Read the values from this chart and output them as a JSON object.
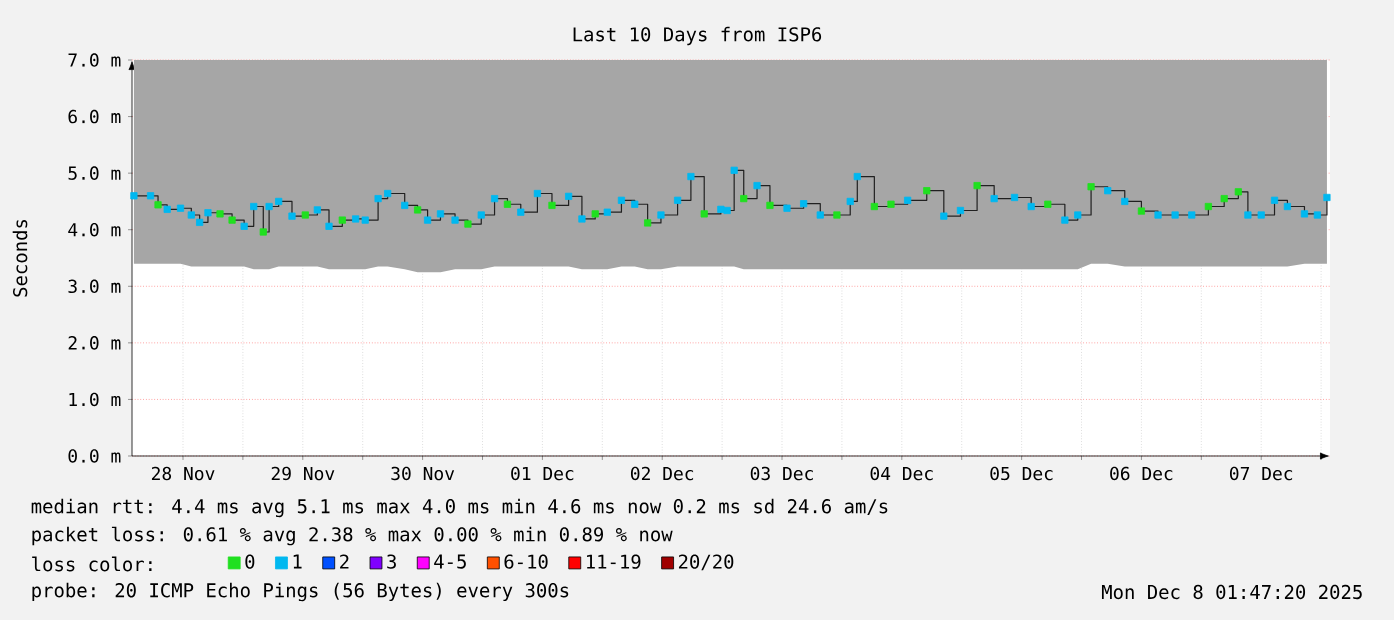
{
  "chart_data": {
    "type": "step",
    "title": "Last 10 Days from ISP6",
    "ylabel": "Seconds",
    "xlim": [
      "2025-11-28T01:47",
      "2025-12-08T01:47"
    ],
    "xticks": [
      {
        "value": "2025-11-28T12:00",
        "label": "28 Nov"
      },
      {
        "value": "2025-11-29",
        "label": null
      },
      {
        "value": "2025-11-29T12:00",
        "label": "29 Nov"
      },
      {
        "value": "2025-11-30",
        "label": null
      },
      {
        "value": "2025-11-30T12:00",
        "label": "30 Nov"
      },
      {
        "value": "2025-12-01",
        "label": null
      },
      {
        "value": "2025-12-01T12:00",
        "label": "01 Dec"
      },
      {
        "value": "2025-12-02",
        "label": null
      },
      {
        "value": "2025-12-02T12:00",
        "label": "02 Dec"
      },
      {
        "value": "2025-12-03",
        "label": null
      },
      {
        "value": "2025-12-03T12:00",
        "label": "03 Dec"
      },
      {
        "value": "2025-12-04",
        "label": null
      },
      {
        "value": "2025-12-04T12:00",
        "label": "04 Dec"
      },
      {
        "value": "2025-12-05",
        "label": null
      },
      {
        "value": "2025-12-05T12:00",
        "label": "05 Dec"
      },
      {
        "value": "2025-12-06",
        "label": null
      },
      {
        "value": "2025-12-06T12:00",
        "label": "06 Dec"
      },
      {
        "value": "2025-12-07",
        "label": null
      },
      {
        "value": "2025-12-07T12:00",
        "label": "07 Dec"
      },
      {
        "value": "2025-12-08",
        "label": null
      }
    ],
    "ylim": [
      0,
      7
    ],
    "yticks": [
      {
        "value": 0,
        "label": "0.0 m"
      },
      {
        "value": 1,
        "label": "1.0 m"
      },
      {
        "value": 2,
        "label": "2.0 m"
      },
      {
        "value": 3,
        "label": "3.0 m"
      },
      {
        "value": 4,
        "label": "4.0 m"
      },
      {
        "value": 5,
        "label": "5.0 m"
      },
      {
        "value": 6,
        "label": "6.0 m"
      },
      {
        "value": 7,
        "label": "7.0 m"
      }
    ],
    "grid": true,
    "marker": "square",
    "legend": "bottom",
    "legend_title": "loss color:",
    "x": [
      "2025-11-28T02:10",
      "2025-11-28T05:30",
      "2025-11-28T07:00",
      "2025-11-28T08:50",
      "2025-11-28T11:30",
      "2025-11-28T13:40",
      "2025-11-28T15:20",
      "2025-11-28T17:00",
      "2025-11-28T19:25",
      "2025-11-28T21:50",
      "2025-11-29T00:15",
      "2025-11-29T02:10",
      "2025-11-29T04:05",
      "2025-11-29T05:15",
      "2025-11-29T07:10",
      "2025-11-29T09:50",
      "2025-11-29T12:30",
      "2025-11-29T14:55",
      "2025-11-29T17:15",
      "2025-11-29T19:55",
      "2025-11-29T22:35",
      "2025-11-30T00:30",
      "2025-11-30T03:05",
      "2025-11-30T05:00",
      "2025-11-30T08:25",
      "2025-11-30T11:00",
      "2025-11-30T13:00",
      "2025-11-30T15:35",
      "2025-11-30T18:30",
      "2025-11-30T21:05",
      "2025-11-30T23:45",
      "2025-12-01T02:25",
      "2025-12-01T05:00",
      "2025-12-01T07:40",
      "2025-12-01T11:00",
      "2025-12-01T13:55",
      "2025-12-01T17:15",
      "2025-12-01T19:55",
      "2025-12-01T22:35",
      "2025-12-02T01:00",
      "2025-12-02T03:50",
      "2025-12-02T06:30",
      "2025-12-02T09:05",
      "2025-12-02T11:45",
      "2025-12-02T15:05",
      "2025-12-02T17:45",
      "2025-12-02T20:25",
      "2025-12-02T23:45",
      "2025-12-03T01:00",
      "2025-12-03T02:25",
      "2025-12-03T04:20",
      "2025-12-03T07:00",
      "2025-12-03T09:35",
      "2025-12-03T13:00",
      "2025-12-03T16:20",
      "2025-12-03T19:40",
      "2025-12-03T23:00",
      "2025-12-04T01:40",
      "2025-12-04T03:05",
      "2025-12-04T06:30",
      "2025-12-04T09:50",
      "2025-12-04T13:10",
      "2025-12-04T17:00",
      "2025-12-04T20:25",
      "2025-12-04T23:45",
      "2025-12-05T03:05",
      "2025-12-05T06:30",
      "2025-12-05T10:35",
      "2025-12-05T13:55",
      "2025-12-05T17:15",
      "2025-12-05T20:40",
      "2025-12-05T23:15",
      "2025-12-06T01:55",
      "2025-12-06T05:15",
      "2025-12-06T08:40",
      "2025-12-06T12:00",
      "2025-12-06T15:20",
      "2025-12-06T18:45",
      "2025-12-06T22:05",
      "2025-12-07T01:25",
      "2025-12-07T04:35",
      "2025-12-07T07:25",
      "2025-12-07T09:20",
      "2025-12-07T12:00",
      "2025-12-07T14:40",
      "2025-12-07T17:15",
      "2025-12-07T20:40",
      "2025-12-07T23:15",
      "2025-12-08T01:10"
    ],
    "series": [
      {
        "color": "#202020",
        "marker": "none",
        "values": [
          4.6,
          4.6,
          4.44,
          4.36,
          4.38,
          4.26,
          4.13,
          4.3,
          4.28,
          4.17,
          4.06,
          4.41,
          3.96,
          4.41,
          4.5,
          4.24,
          4.26,
          4.35,
          4.06,
          4.17,
          4.19,
          4.17,
          4.55,
          4.64,
          4.43,
          4.35,
          4.17,
          4.28,
          4.17,
          4.1,
          4.26,
          4.55,
          4.45,
          4.31,
          4.64,
          4.43,
          4.59,
          4.19,
          4.28,
          4.31,
          4.52,
          4.45,
          4.12,
          4.26,
          4.52,
          4.94,
          4.28,
          4.36,
          4.34,
          5.05,
          4.55,
          4.78,
          4.43,
          4.38,
          4.46,
          4.26,
          4.26,
          4.5,
          4.94,
          4.41,
          4.45,
          4.52,
          4.69,
          4.24,
          4.34,
          4.78,
          4.55,
          4.57,
          4.41,
          4.45,
          4.17,
          4.26,
          4.76,
          4.69,
          4.5,
          4.33,
          4.26,
          4.26,
          4.26,
          4.41,
          4.55,
          4.67,
          4.26,
          4.26,
          4.52,
          4.41,
          4.28,
          4.26,
          4.57
        ],
        "lower": [
          3.4,
          3.4,
          3.4,
          3.4,
          3.4,
          3.35,
          3.35,
          3.35,
          3.35,
          3.35,
          3.35,
          3.3,
          3.3,
          3.3,
          3.35,
          3.35,
          3.35,
          3.35,
          3.3,
          3.3,
          3.3,
          3.3,
          3.35,
          3.35,
          3.3,
          3.25,
          3.25,
          3.25,
          3.3,
          3.3,
          3.3,
          3.35,
          3.35,
          3.35,
          3.35,
          3.35,
          3.35,
          3.3,
          3.3,
          3.3,
          3.35,
          3.35,
          3.3,
          3.3,
          3.35,
          3.35,
          3.35,
          3.35,
          3.35,
          3.35,
          3.3,
          3.3,
          3.3,
          3.3,
          3.3,
          3.3,
          3.3,
          3.3,
          3.3,
          3.3,
          3.3,
          3.3,
          3.3,
          3.3,
          3.3,
          3.3,
          3.3,
          3.3,
          3.3,
          3.3,
          3.3,
          3.3,
          3.4,
          3.4,
          3.35,
          3.35,
          3.35,
          3.35,
          3.35,
          3.35,
          3.35,
          3.35,
          3.35,
          3.35,
          3.35,
          3.35,
          3.4,
          3.4,
          3.4
        ],
        "upper": [
          7,
          7,
          7,
          7,
          7,
          7,
          7,
          7,
          7,
          7,
          7,
          7,
          7,
          7,
          7,
          7,
          7,
          7,
          7,
          7,
          7,
          7,
          7,
          7,
          7,
          7,
          7,
          7,
          7,
          7,
          7,
          7,
          7,
          7,
          7,
          7,
          7,
          7,
          7,
          7,
          7,
          7,
          7,
          7,
          7,
          7,
          7,
          7,
          7,
          7,
          7,
          7,
          7,
          7,
          7,
          7,
          7,
          7,
          7,
          7,
          7,
          7,
          7,
          7,
          7,
          7,
          7,
          7,
          7,
          7,
          7,
          7,
          7,
          7,
          7,
          7,
          7,
          7,
          7,
          7,
          7,
          7,
          7,
          7,
          7,
          7,
          7,
          7,
          7
        ]
      },
      {
        "type": "scatter",
        "name": "0",
        "color": "#20e020",
        "values": [
          null,
          null,
          4.44,
          null,
          null,
          null,
          null,
          null,
          4.28,
          4.17,
          null,
          null,
          3.96,
          null,
          null,
          null,
          4.26,
          null,
          null,
          4.17,
          null,
          null,
          null,
          null,
          null,
          4.35,
          null,
          null,
          null,
          4.1,
          null,
          null,
          4.45,
          null,
          null,
          4.43,
          null,
          null,
          4.28,
          null,
          null,
          null,
          4.12,
          null,
          null,
          null,
          4.28,
          null,
          null,
          null,
          4.55,
          null,
          4.43,
          null,
          null,
          null,
          4.26,
          null,
          null,
          4.41,
          4.45,
          null,
          4.69,
          null,
          null,
          4.78,
          null,
          null,
          null,
          4.45,
          null,
          null,
          4.76,
          null,
          null,
          4.33,
          null,
          null,
          null,
          4.41,
          4.55,
          4.67,
          null,
          null,
          null,
          null,
          null,
          null,
          null
        ]
      },
      {
        "type": "scatter",
        "name": "1",
        "color": "#00b8f0",
        "values": [
          4.6,
          4.6,
          null,
          4.36,
          4.38,
          4.26,
          4.13,
          4.3,
          null,
          null,
          4.06,
          4.41,
          null,
          4.41,
          4.5,
          4.24,
          null,
          4.35,
          4.06,
          null,
          4.19,
          4.17,
          4.55,
          4.64,
          4.43,
          null,
          4.17,
          4.28,
          4.17,
          null,
          4.26,
          4.55,
          null,
          4.31,
          4.64,
          null,
          4.59,
          4.19,
          null,
          4.31,
          4.52,
          4.45,
          null,
          4.26,
          4.52,
          4.94,
          null,
          4.36,
          4.34,
          5.05,
          null,
          4.78,
          null,
          4.38,
          4.46,
          4.26,
          null,
          4.5,
          4.94,
          null,
          null,
          4.52,
          null,
          4.24,
          4.34,
          null,
          4.55,
          4.57,
          4.41,
          null,
          4.17,
          4.26,
          null,
          4.69,
          4.5,
          null,
          4.26,
          4.26,
          4.26,
          null,
          null,
          null,
          4.26,
          4.26,
          4.52,
          4.41,
          4.28,
          4.26,
          4.57
        ]
      },
      {
        "type": "scatter",
        "name": "2",
        "color": "#0050ff",
        "values": [
          null,
          null,
          null,
          null,
          null,
          null,
          null,
          null,
          null,
          null,
          null,
          null,
          null,
          null,
          null,
          null,
          null,
          null,
          null,
          null,
          null,
          null,
          null,
          null,
          null,
          null,
          null,
          null,
          null,
          null,
          null,
          null,
          null,
          null,
          null,
          null,
          null,
          null,
          null,
          null,
          null,
          null,
          null,
          null,
          null,
          null,
          null,
          null,
          null,
          null,
          null,
          null,
          null,
          null,
          null,
          null,
          null,
          null,
          null,
          null,
          null,
          null,
          null,
          null,
          null,
          null,
          null,
          null,
          null,
          null,
          null,
          null,
          null,
          null,
          null,
          null,
          null,
          null,
          null,
          null,
          null,
          null,
          null,
          null,
          null,
          null,
          null,
          null,
          null
        ]
      },
      {
        "type": "scatter",
        "name": "3",
        "color": "#8000ff",
        "values": [
          null,
          null,
          null,
          null,
          null,
          null,
          null,
          null,
          null,
          null,
          null,
          null,
          null,
          null,
          null,
          null,
          null,
          null,
          null,
          null,
          null,
          null,
          null,
          null,
          null,
          null,
          null,
          null,
          null,
          null,
          null,
          null,
          null,
          null,
          null,
          null,
          null,
          null,
          null,
          null,
          null,
          null,
          null,
          null,
          null,
          null,
          null,
          null,
          null,
          null,
          null,
          null,
          null,
          null,
          null,
          null,
          null,
          null,
          null,
          null,
          null,
          null,
          null,
          null,
          null,
          null,
          null,
          null,
          null,
          null,
          null,
          null,
          null,
          null,
          null,
          null,
          null,
          null,
          null,
          null,
          null,
          null,
          null,
          null,
          null,
          null,
          null,
          null,
          null
        ]
      },
      {
        "type": "scatter",
        "name": "4-5",
        "color": "#ff00ff",
        "values": [
          null,
          null,
          null,
          null,
          null,
          null,
          null,
          null,
          null,
          null,
          null,
          null,
          null,
          null,
          null,
          null,
          null,
          null,
          null,
          null,
          null,
          null,
          null,
          null,
          null,
          null,
          null,
          null,
          null,
          null,
          null,
          null,
          null,
          null,
          null,
          null,
          null,
          null,
          null,
          null,
          null,
          null,
          null,
          null,
          null,
          null,
          null,
          null,
          null,
          null,
          null,
          null,
          null,
          null,
          null,
          null,
          null,
          null,
          null,
          null,
          null,
          null,
          null,
          null,
          null,
          null,
          null,
          null,
          null,
          null,
          null,
          null,
          null,
          null,
          null,
          null,
          null,
          null,
          null,
          null,
          null,
          null,
          null,
          null,
          null,
          null,
          null,
          null,
          null
        ]
      },
      {
        "type": "scatter",
        "name": "6-10",
        "color": "#ff5000",
        "values": [
          null,
          null,
          null,
          null,
          null,
          null,
          null,
          null,
          null,
          null,
          null,
          null,
          null,
          null,
          null,
          null,
          null,
          null,
          null,
          null,
          null,
          null,
          null,
          null,
          null,
          null,
          null,
          null,
          null,
          null,
          null,
          null,
          null,
          null,
          null,
          null,
          null,
          null,
          null,
          null,
          null,
          null,
          null,
          null,
          null,
          null,
          null,
          null,
          null,
          null,
          null,
          null,
          null,
          null,
          null,
          null,
          null,
          null,
          null,
          null,
          null,
          null,
          null,
          null,
          null,
          null,
          null,
          null,
          null,
          null,
          null,
          null,
          null,
          null,
          null,
          null,
          null,
          null,
          null,
          null,
          null,
          null,
          null,
          null,
          null,
          null,
          null,
          null,
          null
        ]
      },
      {
        "type": "scatter",
        "name": "11-19",
        "color": "#ff0000",
        "values": [
          null,
          null,
          null,
          null,
          null,
          null,
          null,
          null,
          null,
          null,
          null,
          null,
          null,
          null,
          null,
          null,
          null,
          null,
          null,
          null,
          null,
          null,
          null,
          null,
          null,
          null,
          null,
          null,
          null,
          null,
          null,
          null,
          null,
          null,
          null,
          null,
          null,
          null,
          null,
          null,
          null,
          null,
          null,
          null,
          null,
          null,
          null,
          null,
          null,
          null,
          null,
          null,
          null,
          null,
          null,
          null,
          null,
          null,
          null,
          null,
          null,
          null,
          null,
          null,
          null,
          null,
          null,
          null,
          null,
          null,
          null,
          null,
          null,
          null,
          null,
          null,
          null,
          null,
          null,
          null,
          null,
          null,
          null,
          null,
          null,
          null,
          null,
          null,
          null
        ]
      },
      {
        "type": "scatter",
        "name": "20/20",
        "color": "#a00000",
        "values": [
          null,
          null,
          null,
          null,
          null,
          null,
          null,
          null,
          null,
          null,
          null,
          null,
          null,
          null,
          null,
          null,
          null,
          null,
          null,
          null,
          null,
          null,
          null,
          null,
          null,
          null,
          null,
          null,
          null,
          null,
          null,
          null,
          null,
          null,
          null,
          null,
          null,
          null,
          null,
          null,
          null,
          null,
          null,
          null,
          null,
          null,
          null,
          null,
          null,
          null,
          null,
          null,
          null,
          null,
          null,
          null,
          null,
          null,
          null,
          null,
          null,
          null,
          null,
          null,
          null,
          null,
          null,
          null,
          null,
          null,
          null,
          null,
          null,
          null,
          null,
          null,
          null,
          null,
          null,
          null,
          null,
          null,
          null,
          null,
          null,
          null,
          null,
          null,
          null
        ]
      }
    ],
    "annotations": [
      "median rtt:  4.4 ms avg  5.1 ms max  4.0 ms min  4.6 ms now  0.2 ms sd  24.6  am/s",
      "packet loss: 0.61 % avg  2.38 % max  0.00 % min  0.89 % now",
      "probe:       20 ICMP Echo Pings (56 Bytes) every 300s",
      "Mon Dec  8 01:47:20 2025"
    ]
  }
}
